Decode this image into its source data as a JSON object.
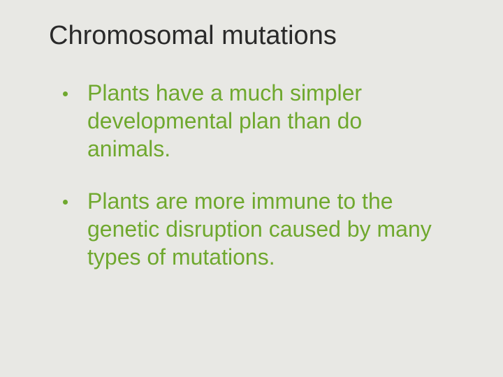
{
  "slide": {
    "title": "Chromosomal mutations",
    "bullets": [
      "Plants have a much simpler developmental plan than do animals.",
      "Plants are more immune to the genetic disruption caused by many types of mutations."
    ],
    "background_color": "#e8e8e4",
    "title_color": "#2a2a2a",
    "title_fontsize": 38,
    "bullet_color": "#6fa82e",
    "bullet_fontsize": 32,
    "bullet_dot_color": "#6fa82e"
  }
}
